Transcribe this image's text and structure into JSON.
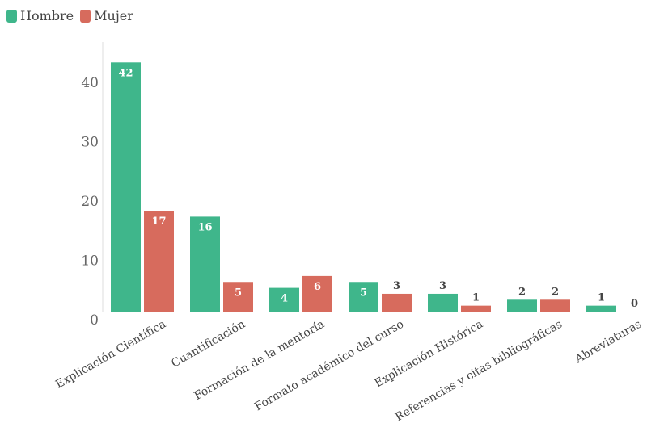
{
  "chart_data": {
    "type": "bar",
    "title": "",
    "xlabel": "",
    "ylabel": "",
    "ylim": [
      0,
      45
    ],
    "yticks": [
      0,
      10,
      20,
      30,
      40
    ],
    "legend_position": "top-left",
    "categories": [
      "Explicación Científica",
      "Cuantificación",
      "Formación de la mentoría",
      "Formato académico del curso",
      "Explicación Histórica",
      "Referencias y citas bibliográficas",
      "Abreviaturas"
    ],
    "series": [
      {
        "name": "Hombre",
        "color": "#3fb68b",
        "values": [
          42,
          16,
          4,
          5,
          3,
          2,
          1
        ]
      },
      {
        "name": "Mujer",
        "color": "#d76b5d",
        "values": [
          17,
          5,
          6,
          3,
          1,
          2,
          0
        ]
      }
    ]
  }
}
